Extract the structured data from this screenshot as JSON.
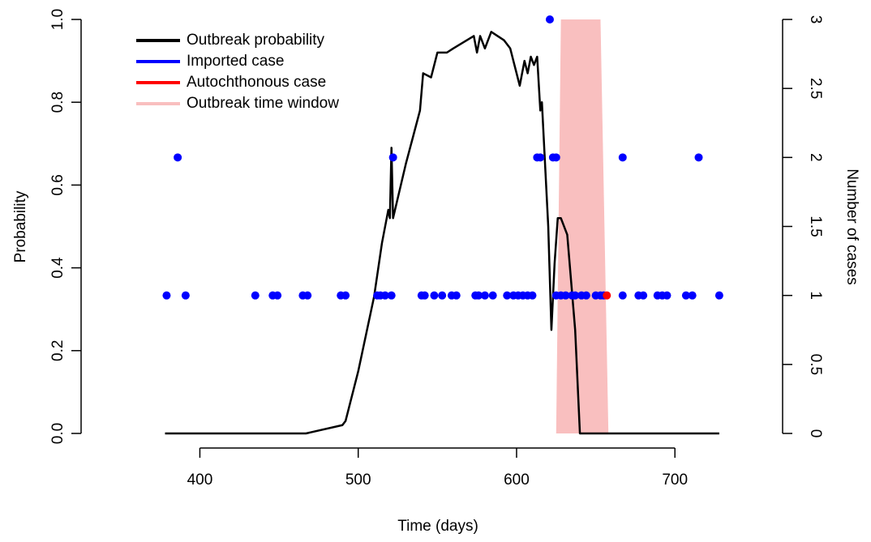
{
  "chart_data": {
    "type": "line",
    "xlabel": "Time (days)",
    "ylabel": "Probability",
    "y2label": "Number of cases",
    "xlim": [
      325,
      768
    ],
    "ylim": [
      0,
      1
    ],
    "y2lim": [
      0,
      3
    ],
    "xticks": [
      400,
      500,
      600,
      700
    ],
    "yticks": [
      {
        "value": 0,
        "label": "0.0"
      },
      0.2,
      0.4,
      0.6,
      0.8,
      {
        "value": 1,
        "label": "1.0"
      }
    ],
    "y2ticks": [
      0,
      0.5,
      1,
      1.5,
      2,
      2.5,
      3
    ],
    "legend": "top-left",
    "series": [
      {
        "name": "Outbreak probability",
        "type": "line",
        "color": "#000000",
        "x": [
          378,
          467,
          490,
          492,
          500,
          510,
          515,
          519,
          520,
          521,
          522,
          530,
          539,
          541,
          546,
          550,
          556,
          560,
          573,
          575,
          577,
          580,
          584,
          592,
          596,
          602,
          605,
          607,
          609,
          611,
          613,
          615,
          616,
          620,
          622,
          624,
          626,
          628,
          632,
          637,
          640,
          728
        ],
        "values": [
          0,
          0,
          0.02,
          0.03,
          0.15,
          0.33,
          0.46,
          0.54,
          0.52,
          0.69,
          0.52,
          0.65,
          0.78,
          0.87,
          0.86,
          0.92,
          0.92,
          0.93,
          0.96,
          0.92,
          0.96,
          0.93,
          0.97,
          0.95,
          0.93,
          0.84,
          0.9,
          0.87,
          0.91,
          0.89,
          0.91,
          0.78,
          0.8,
          0.5,
          0.25,
          0.41,
          0.52,
          0.52,
          0.48,
          0.25,
          0,
          0
        ]
      },
      {
        "name": "Imported case",
        "type": "scatter",
        "axis": "y2",
        "color": "#0000ff",
        "x": [
          379,
          391,
          435,
          446,
          449,
          465,
          468,
          489,
          492,
          512,
          514,
          517,
          521,
          540,
          542,
          548,
          553,
          559,
          562,
          574,
          576,
          580,
          585,
          594,
          598,
          601,
          604,
          607,
          610,
          625,
          628,
          631,
          635,
          637,
          641,
          644,
          650,
          653,
          655,
          667,
          677,
          680,
          689,
          692,
          695,
          707,
          711,
          728,
          386,
          522,
          613,
          615,
          623,
          625,
          667,
          715,
          621
        ],
        "values": [
          1,
          1,
          1,
          1,
          1,
          1,
          1,
          1,
          1,
          1,
          1,
          1,
          1,
          1,
          1,
          1,
          1,
          1,
          1,
          1,
          1,
          1,
          1,
          1,
          1,
          1,
          1,
          1,
          1,
          1,
          1,
          1,
          1,
          1,
          1,
          1,
          1,
          1,
          1,
          1,
          1,
          1,
          1,
          1,
          1,
          1,
          1,
          1,
          2,
          2,
          2,
          2,
          2,
          2,
          2,
          2,
          3
        ]
      },
      {
        "name": "Autochthonous case",
        "type": "scatter",
        "axis": "y2",
        "color": "#ff0000",
        "x": [
          657
        ],
        "values": [
          1
        ]
      },
      {
        "name": "Outbreak time window",
        "type": "polygon",
        "axis": "y2",
        "color": "#f9bfbf",
        "x": [
          625,
          628,
          653,
          658
        ],
        "values": [
          0,
          3,
          3,
          0
        ]
      }
    ]
  }
}
